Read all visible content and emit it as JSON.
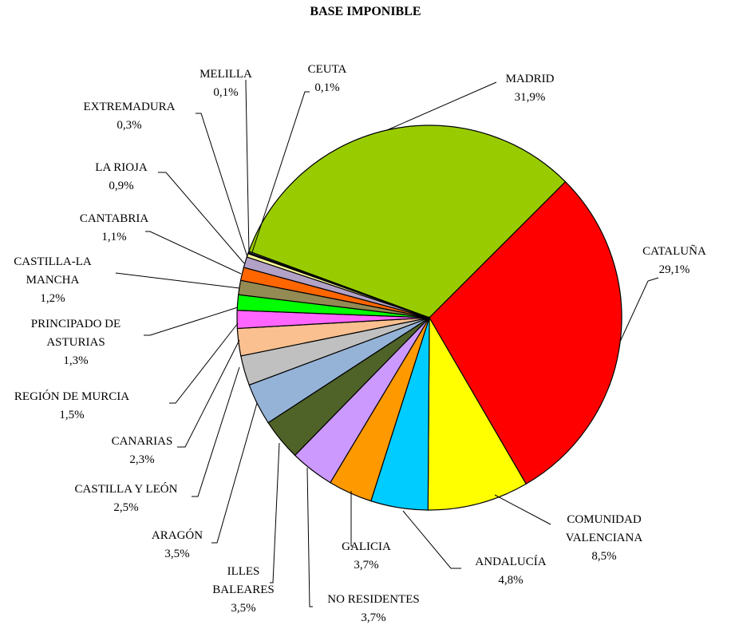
{
  "chart_data": {
    "type": "pie",
    "title": "BASE IMPONIBLE",
    "categories": [
      "MADRID",
      "CATALUÑA",
      "COMUNIDAD VALENCIANA",
      "ANDALUCÍA",
      "GALICIA",
      "NO RESIDENTES",
      "ILLES BALEARES",
      "ARAGÓN",
      "CASTILLA Y LEÓN",
      "CANARIAS",
      "REGIÓN DE MURCIA",
      "PRINCIPADO DE ASTURIAS",
      "CASTILLA-LA MANCHA",
      "CANTABRIA",
      "LA RIOJA",
      "EXTREMADURA",
      "MELILLA",
      "CEUTA"
    ],
    "values": [
      31.9,
      29.1,
      8.5,
      4.8,
      3.7,
      3.7,
      3.5,
      3.5,
      2.5,
      2.3,
      1.5,
      1.3,
      1.2,
      1.1,
      0.9,
      0.3,
      0.1,
      0.1
    ],
    "value_labels": [
      "31,9%",
      "29,1%",
      "8,5%",
      "4,8%",
      "3,7%",
      "3,7%",
      "3,5%",
      "3,5%",
      "2,5%",
      "2,3%",
      "1,5%",
      "1,3%",
      "1,2%",
      "1,1%",
      "0,9%",
      "0,3%",
      "0,1%",
      "0,1%"
    ],
    "colors": [
      "#99cc00",
      "#ff0000",
      "#ffff00",
      "#00ccff",
      "#ff9900",
      "#cc99ff",
      "#4f6228",
      "#95b3d7",
      "#c0c0c0",
      "#fac090",
      "#ff66ff",
      "#00ff00",
      "#948a54",
      "#ff6600",
      "#b2a2c7",
      "#ffff99",
      "#000080",
      "#ffffff"
    ]
  }
}
